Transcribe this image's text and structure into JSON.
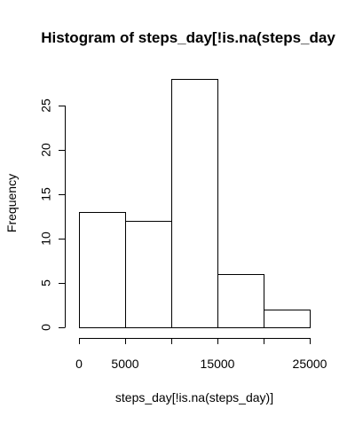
{
  "chart_data": {
    "type": "bar",
    "subtype": "histogram",
    "title": "Histogram of steps_day[!is.na(steps_day",
    "xlabel": "steps_day[!is.na(steps_day)]",
    "ylabel": "Frequency",
    "bins": [
      {
        "from": 0,
        "to": 5000,
        "count": 13
      },
      {
        "from": 5000,
        "to": 10000,
        "count": 12
      },
      {
        "from": 10000,
        "to": 15000,
        "count": 28
      },
      {
        "from": 15000,
        "to": 20000,
        "count": 6
      },
      {
        "from": 20000,
        "to": 25000,
        "count": 2
      }
    ],
    "xlim": [
      0,
      25000
    ],
    "ylim": [
      0,
      28
    ],
    "x_ticks": [
      0,
      5000,
      10000,
      15000,
      20000,
      25000
    ],
    "x_tick_labels": [
      "0",
      "5000",
      "",
      "15000",
      "",
      "25000"
    ],
    "y_ticks": [
      0,
      5,
      10,
      15,
      20,
      25
    ],
    "y_tick_labels": [
      "0",
      "5",
      "10",
      "15",
      "20",
      "25"
    ],
    "grid": false,
    "legend": "none",
    "bar_fill": "#ffffff",
    "bar_stroke": "#000000"
  }
}
